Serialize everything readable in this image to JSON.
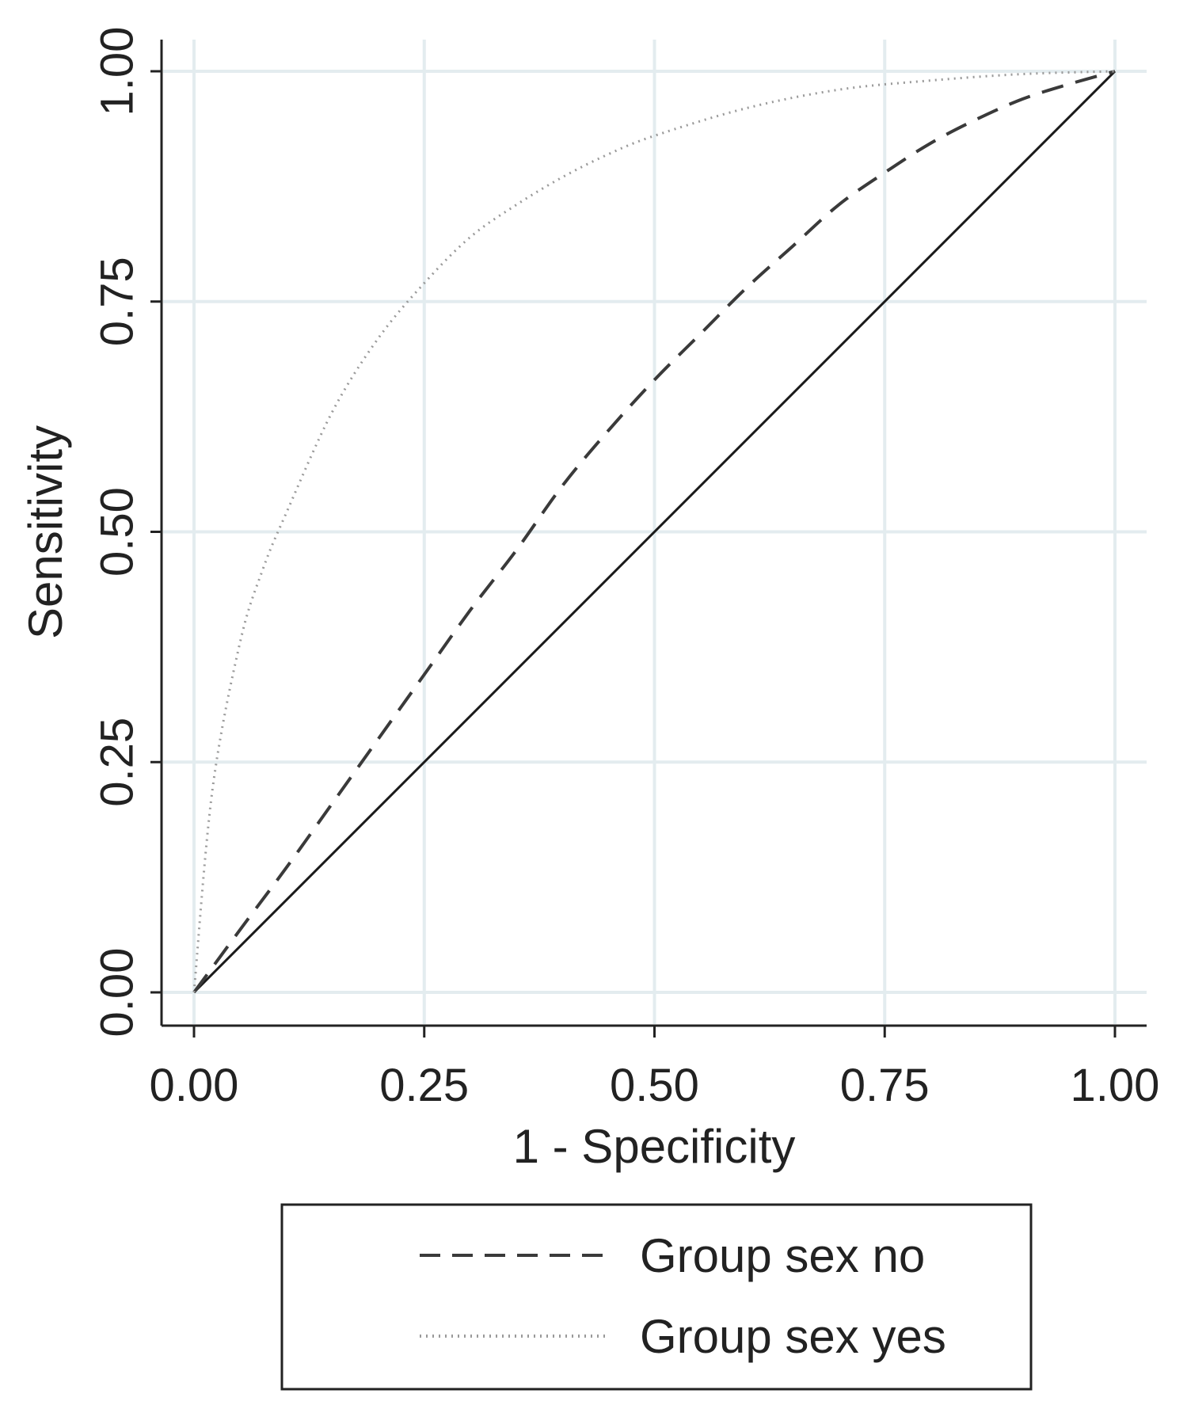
{
  "chart_data": {
    "type": "line",
    "title": "",
    "xlabel": "1 - Specificity",
    "ylabel": "Sensitivity",
    "xlim": [
      0,
      1
    ],
    "ylim": [
      0,
      1
    ],
    "grid": true,
    "xticks": [
      "0.00",
      "0.25",
      "0.50",
      "0.75",
      "1.00"
    ],
    "yticks": [
      "0.00",
      "0.25",
      "0.50",
      "0.75",
      "1.00"
    ],
    "series": [
      {
        "name": "Reference",
        "style": "solid",
        "in_legend": false,
        "x": [
          0,
          1
        ],
        "y": [
          0,
          1
        ]
      },
      {
        "name": "Group sex no",
        "style": "dashed",
        "in_legend": true,
        "x": [
          0,
          0.05,
          0.1,
          0.15,
          0.2,
          0.25,
          0.3,
          0.35,
          0.4,
          0.45,
          0.5,
          0.55,
          0.6,
          0.65,
          0.7,
          0.75,
          0.8,
          0.85,
          0.9,
          0.95,
          1.0
        ],
        "y": [
          0,
          0.068,
          0.135,
          0.205,
          0.275,
          0.345,
          0.415,
          0.48,
          0.55,
          0.61,
          0.665,
          0.715,
          0.765,
          0.81,
          0.855,
          0.89,
          0.922,
          0.948,
          0.97,
          0.986,
          1.0
        ]
      },
      {
        "name": "Group sex yes",
        "style": "dotted",
        "in_legend": true,
        "x": [
          0,
          0.02,
          0.05,
          0.075,
          0.1,
          0.15,
          0.2,
          0.25,
          0.3,
          0.35,
          0.4,
          0.45,
          0.5,
          0.6,
          0.7,
          0.8,
          0.9,
          1.0
        ],
        "y": [
          0,
          0.22,
          0.38,
          0.46,
          0.52,
          0.63,
          0.71,
          0.77,
          0.82,
          0.855,
          0.885,
          0.91,
          0.93,
          0.96,
          0.98,
          0.99,
          0.997,
          1.0
        ]
      }
    ],
    "legend": {
      "position": "bottom",
      "entries": [
        "Group sex no",
        "Group sex yes"
      ]
    },
    "colors": {
      "reference": "#1a1a1a",
      "dashed": "#3a3a3a",
      "dotted": "#9a9a9a",
      "grid": "#e3ecef",
      "axis": "#222222"
    }
  }
}
